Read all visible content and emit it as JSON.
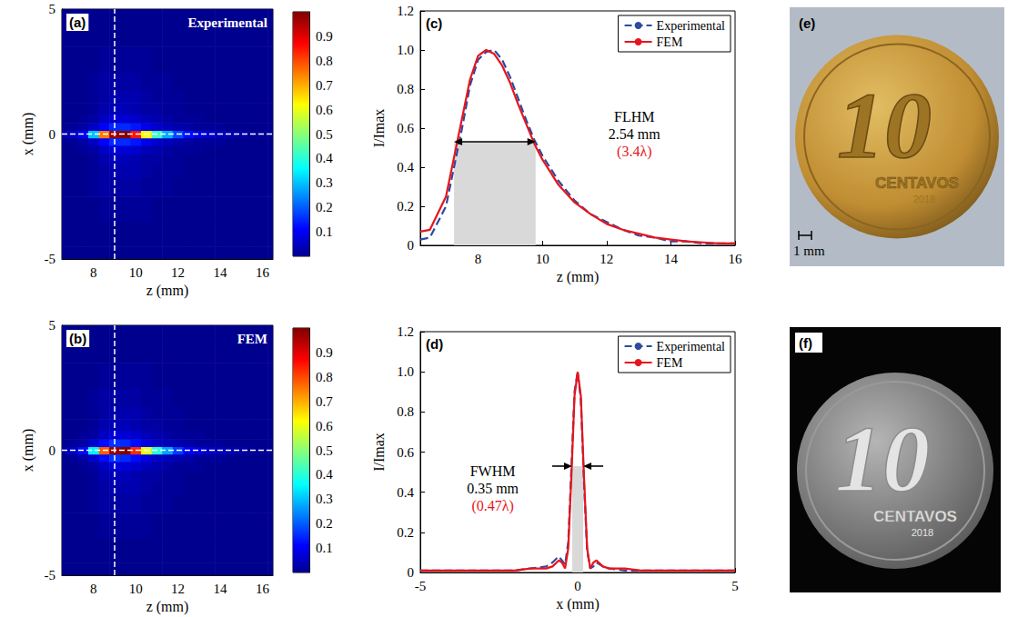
{
  "chart_data": [
    {
      "panel": "(a)",
      "type": "heatmap",
      "title": "Experimental",
      "x_label": "z (mm)",
      "y_label": "x (mm)",
      "z": [
        6.5,
        7,
        7.5,
        8,
        8.5,
        9,
        9.5,
        10,
        10.5,
        11,
        11.5,
        12,
        12.5,
        13,
        13.5,
        14,
        14.5,
        15,
        15.5,
        16,
        16.5
      ],
      "x": [
        -5,
        -4,
        -3,
        -2,
        -1.5,
        -1,
        -0.6,
        -0.3,
        0,
        0.3,
        0.6,
        1,
        1.5,
        2,
        3,
        4,
        5
      ],
      "intensity": [
        [
          0,
          0,
          0,
          0,
          0,
          0,
          0,
          0,
          0,
          0,
          0,
          0,
          0,
          0,
          0,
          0,
          0,
          0,
          0,
          0,
          0
        ],
        [
          0,
          0,
          0,
          0,
          0,
          0,
          0,
          0,
          0,
          0,
          0,
          0,
          0,
          0,
          0,
          0,
          0,
          0,
          0,
          0,
          0
        ],
        [
          0,
          0,
          0,
          0,
          0.01,
          0.01,
          0.01,
          0.01,
          0.01,
          0,
          0,
          0,
          0,
          0,
          0,
          0,
          0,
          0,
          0,
          0,
          0
        ],
        [
          0,
          0,
          0,
          0.01,
          0.02,
          0.02,
          0.02,
          0.02,
          0.01,
          0.01,
          0.01,
          0,
          0,
          0,
          0,
          0,
          0,
          0,
          0,
          0,
          0
        ],
        [
          0,
          0,
          0,
          0.01,
          0.02,
          0.03,
          0.03,
          0.03,
          0.02,
          0.01,
          0.01,
          0.01,
          0,
          0,
          0,
          0,
          0,
          0,
          0,
          0,
          0
        ],
        [
          0,
          0,
          0,
          0.01,
          0.03,
          0.04,
          0.04,
          0.03,
          0.02,
          0.02,
          0.01,
          0.01,
          0,
          0,
          0,
          0,
          0,
          0,
          0,
          0,
          0
        ],
        [
          0,
          0,
          0.01,
          0.02,
          0.05,
          0.07,
          0.07,
          0.06,
          0.04,
          0.03,
          0.02,
          0.01,
          0.01,
          0.01,
          0,
          0,
          0,
          0,
          0,
          0,
          0
        ],
        [
          0,
          0.01,
          0.02,
          0.05,
          0.11,
          0.15,
          0.15,
          0.13,
          0.09,
          0.06,
          0.04,
          0.03,
          0.02,
          0.01,
          0.01,
          0.01,
          0,
          0,
          0,
          0,
          0
        ],
        [
          0.03,
          0.05,
          0.1,
          0.3,
          0.75,
          0.97,
          1.0,
          0.85,
          0.62,
          0.42,
          0.28,
          0.18,
          0.12,
          0.08,
          0.06,
          0.04,
          0.03,
          0.02,
          0.01,
          0.01,
          0.01
        ],
        [
          0,
          0.01,
          0.02,
          0.05,
          0.11,
          0.15,
          0.15,
          0.13,
          0.09,
          0.06,
          0.04,
          0.03,
          0.02,
          0.01,
          0.01,
          0.01,
          0,
          0,
          0,
          0,
          0
        ],
        [
          0,
          0,
          0.01,
          0.02,
          0.05,
          0.07,
          0.07,
          0.06,
          0.04,
          0.03,
          0.02,
          0.01,
          0.01,
          0.01,
          0,
          0,
          0,
          0,
          0,
          0,
          0
        ],
        [
          0,
          0,
          0,
          0.01,
          0.03,
          0.04,
          0.04,
          0.03,
          0.02,
          0.02,
          0.01,
          0.01,
          0,
          0,
          0,
          0,
          0,
          0,
          0,
          0,
          0
        ],
        [
          0,
          0,
          0,
          0.01,
          0.02,
          0.03,
          0.03,
          0.03,
          0.02,
          0.01,
          0.01,
          0.01,
          0,
          0,
          0,
          0,
          0,
          0,
          0,
          0,
          0
        ],
        [
          0,
          0,
          0,
          0.01,
          0.02,
          0.02,
          0.02,
          0.02,
          0.01,
          0.01,
          0.01,
          0,
          0,
          0,
          0,
          0,
          0,
          0,
          0,
          0,
          0
        ],
        [
          0,
          0,
          0,
          0,
          0.01,
          0.01,
          0.01,
          0.01,
          0.01,
          0,
          0,
          0,
          0,
          0,
          0,
          0,
          0,
          0,
          0,
          0,
          0
        ],
        [
          0,
          0,
          0,
          0,
          0,
          0,
          0,
          0,
          0,
          0,
          0,
          0,
          0,
          0,
          0,
          0,
          0,
          0,
          0,
          0,
          0
        ],
        [
          0,
          0,
          0,
          0,
          0,
          0,
          0,
          0,
          0,
          0,
          0,
          0,
          0,
          0,
          0,
          0,
          0,
          0,
          0,
          0,
          0
        ]
      ],
      "xlim": [
        6.5,
        16.5
      ],
      "ylim": [
        -5,
        5
      ],
      "xticks": [
        8,
        10,
        12,
        14,
        16
      ],
      "yticks": [
        -5,
        0,
        5
      ],
      "colorbar": {
        "range": [
          0,
          1
        ],
        "ticks": [
          0.1,
          0.2,
          0.3,
          0.4,
          0.5,
          0.6,
          0.7,
          0.8,
          0.9
        ]
      },
      "guides": {
        "z": 9,
        "x": 0
      }
    },
    {
      "panel": "(b)",
      "type": "heatmap",
      "title": "FEM",
      "x_label": "z (mm)",
      "y_label": "x (mm)",
      "z": [
        6.5,
        7,
        7.5,
        8,
        8.5,
        9,
        9.5,
        10,
        10.5,
        11,
        11.5,
        12,
        12.5,
        13,
        13.5,
        14,
        14.5,
        15,
        15.5,
        16,
        16.5
      ],
      "x": [
        -5,
        -4,
        -3,
        -2,
        -1.5,
        -1,
        -0.6,
        -0.3,
        0,
        0.3,
        0.6,
        1,
        1.5,
        2,
        3,
        4,
        5
      ],
      "intensity": [
        [
          0,
          0,
          0,
          0,
          0,
          0,
          0,
          0,
          0,
          0,
          0,
          0,
          0,
          0,
          0,
          0,
          0,
          0,
          0,
          0,
          0
        ],
        [
          0,
          0,
          0,
          0,
          0,
          0,
          0,
          0,
          0,
          0,
          0,
          0,
          0,
          0,
          0,
          0,
          0,
          0,
          0,
          0,
          0
        ],
        [
          0,
          0,
          0,
          0,
          0.01,
          0.01,
          0.01,
          0.01,
          0.01,
          0,
          0,
          0,
          0,
          0,
          0,
          0,
          0,
          0,
          0,
          0,
          0
        ],
        [
          0,
          0,
          0,
          0.01,
          0.02,
          0.02,
          0.02,
          0.02,
          0.01,
          0.01,
          0.01,
          0,
          0,
          0,
          0,
          0,
          0,
          0,
          0,
          0,
          0
        ],
        [
          0,
          0,
          0,
          0.01,
          0.02,
          0.03,
          0.03,
          0.03,
          0.02,
          0.01,
          0.01,
          0.01,
          0,
          0,
          0,
          0,
          0,
          0,
          0,
          0,
          0
        ],
        [
          0,
          0,
          0,
          0.01,
          0.03,
          0.04,
          0.04,
          0.03,
          0.02,
          0.02,
          0.01,
          0.01,
          0,
          0,
          0,
          0,
          0,
          0,
          0,
          0,
          0
        ],
        [
          0,
          0,
          0.01,
          0.02,
          0.05,
          0.07,
          0.07,
          0.06,
          0.04,
          0.03,
          0.02,
          0.01,
          0.01,
          0.01,
          0,
          0,
          0,
          0,
          0,
          0,
          0
        ],
        [
          0,
          0.01,
          0.02,
          0.06,
          0.12,
          0.16,
          0.15,
          0.12,
          0.08,
          0.05,
          0.04,
          0.03,
          0.02,
          0.01,
          0.01,
          0.01,
          0,
          0,
          0,
          0,
          0
        ],
        [
          0.02,
          0.05,
          0.12,
          0.35,
          0.78,
          0.98,
          1.0,
          0.83,
          0.6,
          0.4,
          0.27,
          0.17,
          0.11,
          0.08,
          0.05,
          0.04,
          0.03,
          0.02,
          0.01,
          0.01,
          0.01
        ],
        [
          0,
          0.01,
          0.02,
          0.06,
          0.12,
          0.16,
          0.15,
          0.12,
          0.08,
          0.05,
          0.04,
          0.03,
          0.02,
          0.01,
          0.01,
          0.01,
          0,
          0,
          0,
          0,
          0
        ],
        [
          0,
          0,
          0.01,
          0.02,
          0.05,
          0.07,
          0.07,
          0.06,
          0.04,
          0.03,
          0.02,
          0.01,
          0.01,
          0.01,
          0,
          0,
          0,
          0,
          0,
          0,
          0
        ],
        [
          0,
          0,
          0,
          0.01,
          0.03,
          0.04,
          0.04,
          0.03,
          0.02,
          0.02,
          0.01,
          0.01,
          0,
          0,
          0,
          0,
          0,
          0,
          0,
          0,
          0
        ],
        [
          0,
          0,
          0,
          0.01,
          0.02,
          0.03,
          0.03,
          0.03,
          0.02,
          0.01,
          0.01,
          0.01,
          0,
          0,
          0,
          0,
          0,
          0,
          0,
          0,
          0
        ],
        [
          0,
          0,
          0,
          0.01,
          0.02,
          0.02,
          0.02,
          0.02,
          0.01,
          0.01,
          0.01,
          0,
          0,
          0,
          0,
          0,
          0,
          0,
          0,
          0,
          0
        ],
        [
          0,
          0,
          0,
          0,
          0.01,
          0.01,
          0.01,
          0.01,
          0.01,
          0,
          0,
          0,
          0,
          0,
          0,
          0,
          0,
          0,
          0,
          0,
          0
        ],
        [
          0,
          0,
          0,
          0,
          0,
          0,
          0,
          0,
          0,
          0,
          0,
          0,
          0,
          0,
          0,
          0,
          0,
          0,
          0,
          0,
          0
        ],
        [
          0,
          0,
          0,
          0,
          0,
          0,
          0,
          0,
          0,
          0,
          0,
          0,
          0,
          0,
          0,
          0,
          0,
          0,
          0,
          0,
          0
        ]
      ],
      "xlim": [
        6.5,
        16.5
      ],
      "ylim": [
        -5,
        5
      ],
      "xticks": [
        8,
        10,
        12,
        14,
        16
      ],
      "yticks": [
        -5,
        0,
        5
      ],
      "colorbar": {
        "range": [
          0,
          1
        ],
        "ticks": [
          0.1,
          0.2,
          0.3,
          0.4,
          0.5,
          0.6,
          0.7,
          0.8,
          0.9
        ]
      },
      "guides": {
        "z": 9,
        "x": 0
      }
    },
    {
      "panel": "(c)",
      "type": "line",
      "x_label": "z (mm)",
      "y_label": "I/Imax",
      "x": [
        6.2,
        6.5,
        7,
        7.25,
        7.5,
        7.75,
        8,
        8.25,
        8.5,
        8.75,
        9,
        9.25,
        9.5,
        9.75,
        10,
        10.5,
        11,
        11.5,
        12,
        12.5,
        13,
        13.5,
        14,
        14.5,
        15,
        15.5,
        16
      ],
      "series": [
        {
          "name": "Experimental",
          "color": "#2c4aa0",
          "line_style": "dashed",
          "values": [
            0.03,
            0.04,
            0.2,
            0.4,
            0.6,
            0.82,
            0.95,
            0.99,
            1.0,
            0.95,
            0.86,
            0.75,
            0.64,
            0.54,
            0.46,
            0.33,
            0.23,
            0.16,
            0.12,
            0.08,
            0.05,
            0.04,
            0.02,
            0.02,
            0.01,
            0.01,
            0.01
          ]
        },
        {
          "name": "FEM",
          "color": "#e8141c",
          "line_style": "solid",
          "values": [
            0.07,
            0.08,
            0.25,
            0.45,
            0.65,
            0.85,
            0.97,
            1.0,
            0.98,
            0.92,
            0.83,
            0.72,
            0.62,
            0.52,
            0.44,
            0.31,
            0.22,
            0.16,
            0.11,
            0.08,
            0.06,
            0.04,
            0.03,
            0.02,
            0.015,
            0.01,
            0.01
          ]
        }
      ],
      "xlim": [
        6.2,
        16
      ],
      "ylim": [
        0,
        1.2
      ],
      "xticks": [
        8,
        10,
        12,
        14,
        16
      ],
      "yticks": [
        0,
        0.2,
        0.4,
        0.6,
        0.8,
        {
          "value": 1,
          "label": "1.0"
        },
        1.2
      ],
      "legend": "upper right",
      "annotation": {
        "texts": [
          {
            "text": "FLHM",
            "color": "#000000"
          },
          {
            "text": "2.54 mm",
            "color": "#000000"
          },
          {
            "text": "(3.4λ)",
            "color": "#e8141c"
          }
        ],
        "span": [
          7.25,
          9.79
        ],
        "level": 0.53
      }
    },
    {
      "panel": "(d)",
      "type": "line",
      "x_label": "x (mm)",
      "y_label": "I/Imax",
      "x": [
        -5,
        -3,
        -2,
        -1.5,
        -1,
        -0.8,
        -0.6,
        -0.5,
        -0.4,
        -0.3,
        -0.2,
        -0.1,
        0,
        0.1,
        0.2,
        0.3,
        0.4,
        0.5,
        0.6,
        0.8,
        1,
        1.5,
        2,
        3,
        5
      ],
      "series": [
        {
          "name": "Experimental",
          "color": "#2c4aa0",
          "line_style": "dashed",
          "values": [
            0.01,
            0.01,
            0.01,
            0.02,
            0.03,
            0.05,
            0.08,
            0.06,
            0.04,
            0.15,
            0.52,
            0.9,
            1.0,
            0.86,
            0.45,
            0.11,
            0.02,
            0.03,
            0.05,
            0.03,
            0.02,
            0.01,
            0.01,
            0.01,
            0.01
          ]
        },
        {
          "name": "FEM",
          "color": "#e8141c",
          "line_style": "solid",
          "values": [
            0.01,
            0.01,
            0.01,
            0.02,
            0.02,
            0.03,
            0.06,
            0.05,
            0.02,
            0.12,
            0.48,
            0.88,
            1.0,
            0.88,
            0.48,
            0.12,
            0.02,
            0.05,
            0.06,
            0.03,
            0.02,
            0.02,
            0.01,
            0.01,
            0.01
          ]
        }
      ],
      "xlim": [
        -5,
        5
      ],
      "ylim": [
        0,
        1.2
      ],
      "xticks": [
        -5,
        0,
        5
      ],
      "yticks": [
        0,
        0.2,
        0.4,
        0.6,
        0.8,
        {
          "value": 1,
          "label": "1.0"
        },
        1.2
      ],
      "legend": "upper right",
      "annotation": {
        "texts": [
          {
            "text": "FWHM",
            "color": "#000000"
          },
          {
            "text": "0.35 mm",
            "color": "#000000"
          },
          {
            "text": "(0.47λ)",
            "color": "#e8141c"
          }
        ],
        "span": [
          -0.175,
          0.175
        ],
        "level": 0.53
      }
    }
  ],
  "photos": [
    {
      "panel": "(e)",
      "inscriptions": {
        "value": "10",
        "name": "CENTAVOS",
        "year": "2018"
      },
      "scale_bar": "1 mm"
    },
    {
      "panel": "(f)",
      "inscriptions": {
        "value": "10",
        "name": "CENTAVOS",
        "year": "2018"
      }
    }
  ]
}
